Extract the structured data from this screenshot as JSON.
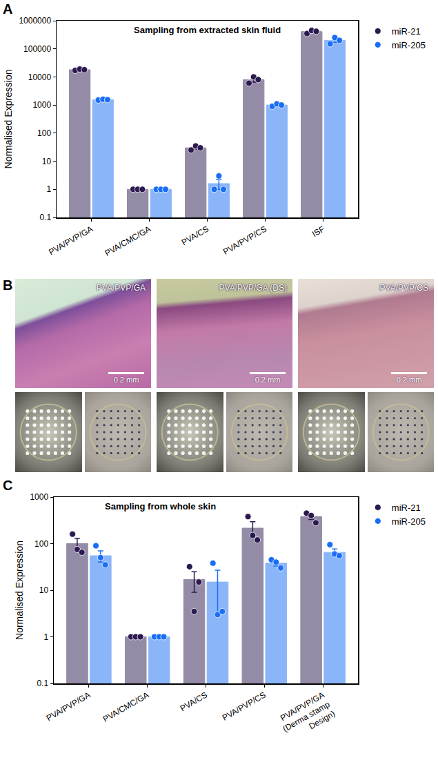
{
  "chart_data": [
    {
      "panel": "A",
      "type": "bar",
      "title": "Sampling from extracted skin fluid",
      "y_label": "Normalised Expression",
      "categories": [
        "PVA/PVP/GA",
        "PVA/CMC/GA",
        "PVA/CS",
        "PVA/PVP/CS",
        "ISF"
      ],
      "series": [
        {
          "name": "miR-21",
          "color": "#2b1a4f",
          "values": [
            18000,
            1,
            30,
            8000,
            410000
          ],
          "errors": [
            1200,
            0,
            3,
            1500,
            30000
          ],
          "points": [
            [
              17000,
              19000,
              18000
            ],
            [
              1,
              1,
              1
            ],
            [
              25,
              35,
              30
            ],
            [
              6000,
              10000,
              8000
            ],
            [
              350000,
              450000,
              420000
            ]
          ]
        },
        {
          "name": "miR-205",
          "color": "#1a6ef5",
          "values": [
            1550,
            1,
            1.6,
            1000,
            200000
          ],
          "errors": [
            80,
            0,
            0.6,
            80,
            30000
          ],
          "points": [
            [
              1500,
              1600,
              1550
            ],
            [
              1,
              1,
              1
            ],
            [
              1,
              3,
              1
            ],
            [
              900,
              1100,
              1000
            ],
            [
              150000,
              250000,
              200000
            ]
          ]
        }
      ],
      "log": "y",
      "ylim": [
        0.1,
        1000000
      ],
      "yticks": [
        0.1,
        1,
        10,
        100,
        1000,
        10000,
        100000,
        1000000
      ],
      "grid": false,
      "legend": "right"
    },
    {
      "panel": "C",
      "type": "bar",
      "title": "Sampling from whole skin",
      "y_label": "Normalised Expression",
      "categories": [
        "PVA/PVP/GA",
        "PVA/CMC/GA",
        "PVA/CS",
        "PVA/PVP/CS",
        "PVA/PVP/GA (Derma stamp Design)"
      ],
      "series": [
        {
          "name": "miR-21",
          "color": "#2b1a4f",
          "values": [
            100,
            1,
            17,
            215,
            380
          ],
          "errors": [
            30,
            0,
            8,
            80,
            50
          ],
          "points": [
            [
              160,
              75,
              65
            ],
            [
              1,
              1,
              1
            ],
            [
              32,
              3.5,
              15
            ],
            [
              380,
              150,
              120
            ],
            [
              450,
              400,
              280
            ]
          ]
        },
        {
          "name": "miR-205",
          "color": "#1a6ef5",
          "values": [
            55,
            1,
            15,
            38,
            65
          ],
          "errors": [
            15,
            0,
            12,
            5,
            12
          ],
          "points": [
            [
              90,
              50,
              35
            ],
            [
              1,
              1,
              1
            ],
            [
              38,
              3,
              3.5
            ],
            [
              45,
              40,
              30
            ],
            [
              95,
              60,
              55
            ]
          ]
        }
      ],
      "log": "y",
      "ylim": [
        0.1,
        1000
      ],
      "yticks": [
        0.1,
        1,
        10,
        100,
        1000
      ],
      "grid": false,
      "legend": "right"
    }
  ],
  "panel_b": {
    "panel": "B",
    "images": [
      {
        "label": "PVA/PVP/GA",
        "scale_bar": "0.2 mm"
      },
      {
        "label": "PVA/PVP/GA (DS)",
        "scale_bar": "0.2 mm"
      },
      {
        "label": "PVA/PVP/CS",
        "scale_bar": "0.2 mm"
      }
    ]
  }
}
